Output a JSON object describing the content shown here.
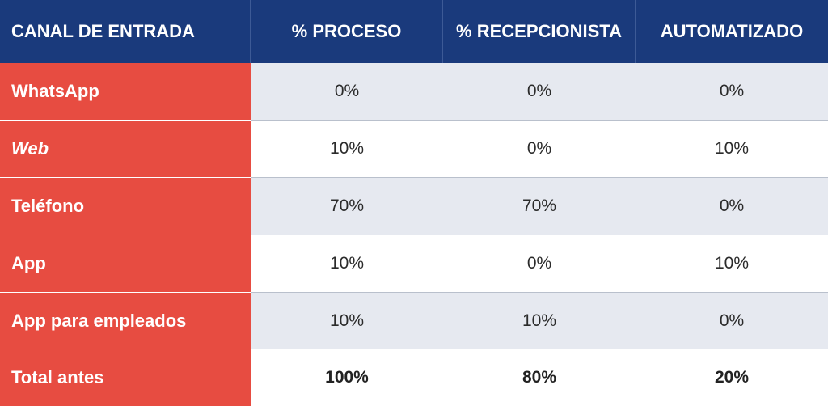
{
  "table": {
    "headers": [
      "CANAL DE ENTRADA",
      "% PROCESO",
      "% RECEPCIONISTA",
      "AUTOMATIZADO"
    ],
    "rows": [
      {
        "label": "WhatsApp",
        "proceso": "0%",
        "recepcionista": "0%",
        "automatizado": "0%"
      },
      {
        "label": "Web",
        "proceso": "10%",
        "recepcionista": "0%",
        "automatizado": "10%"
      },
      {
        "label": "Teléfono",
        "proceso": "70%",
        "recepcionista": "70%",
        "automatizado": "0%"
      },
      {
        "label": "App",
        "proceso": "10%",
        "recepcionista": "0%",
        "automatizado": "10%"
      },
      {
        "label": "App para empleados",
        "proceso": "10%",
        "recepcionista": "10%",
        "automatizado": "0%"
      },
      {
        "label": "Total antes",
        "proceso": "100%",
        "recepcionista": "80%",
        "automatizado": "20%"
      }
    ]
  },
  "colors": {
    "header_bg": "#1a3a7c",
    "label_bg": "#e74c41",
    "shaded_row_bg": "#e6e9f0"
  }
}
